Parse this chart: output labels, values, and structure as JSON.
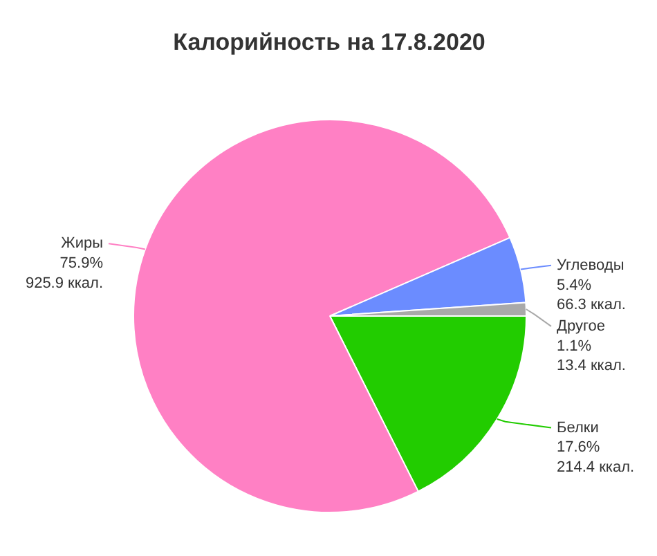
{
  "chart_data": {
    "type": "pie",
    "title": "Калорийность на 17.8.2020",
    "categories": [
      "Белки",
      "Жиры",
      "Углеводы",
      "Другое"
    ],
    "values": [
      214.4,
      925.9,
      66.3,
      13.4
    ],
    "value_labels": [
      "17.6%\n214.4 ккал.",
      "75.9%\n925.9 ккал.",
      "5.4%\n66.3 ккал.",
      "1.1%\n13.4 ккал."
    ],
    "colors": [
      "#22cc00",
      "#ff80c4",
      "#6b8cff",
      "#a9a9a9"
    ]
  }
}
